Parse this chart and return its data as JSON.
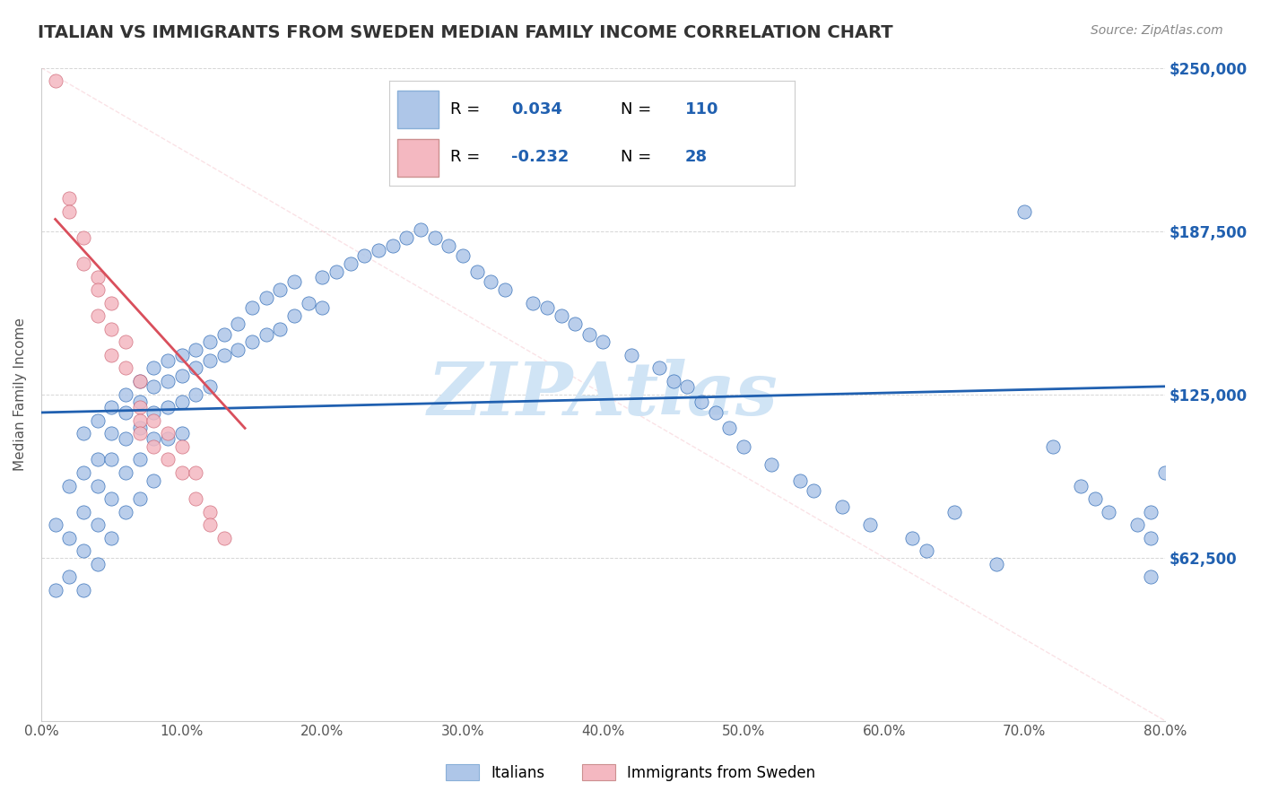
{
  "title": "ITALIAN VS IMMIGRANTS FROM SWEDEN MEDIAN FAMILY INCOME CORRELATION CHART",
  "source": "Source: ZipAtlas.com",
  "ylabel": "Median Family Income",
  "xlim": [
    0.0,
    0.8
  ],
  "ylim": [
    0,
    250000
  ],
  "ytick_labels": [
    "",
    "$62,500",
    "$125,000",
    "$187,500",
    "$250,000"
  ],
  "ytick_values": [
    0,
    62500,
    125000,
    187500,
    250000
  ],
  "xtick_labels": [
    "0.0%",
    "10.0%",
    "20.0%",
    "30.0%",
    "40.0%",
    "50.0%",
    "60.0%",
    "70.0%",
    "80.0%"
  ],
  "xtick_values": [
    0.0,
    0.1,
    0.2,
    0.3,
    0.4,
    0.5,
    0.6,
    0.7,
    0.8
  ],
  "r_blue": 0.034,
  "r_pink": -0.232,
  "n_blue": 110,
  "n_pink": 28,
  "blue_color": "#aec6e8",
  "pink_color": "#f4b8c1",
  "blue_line_color": "#2060b0",
  "pink_line_color": "#d94f5c",
  "title_color": "#333333",
  "source_color": "#888888",
  "watermark_color": "#d0e4f5",
  "background_color": "#ffffff",
  "grid_color": "#cccccc",
  "blue_scatter_x": [
    0.01,
    0.01,
    0.02,
    0.02,
    0.02,
    0.03,
    0.03,
    0.03,
    0.03,
    0.03,
    0.04,
    0.04,
    0.04,
    0.04,
    0.04,
    0.05,
    0.05,
    0.05,
    0.05,
    0.05,
    0.06,
    0.06,
    0.06,
    0.06,
    0.06,
    0.07,
    0.07,
    0.07,
    0.07,
    0.07,
    0.08,
    0.08,
    0.08,
    0.08,
    0.08,
    0.09,
    0.09,
    0.09,
    0.09,
    0.1,
    0.1,
    0.1,
    0.1,
    0.11,
    0.11,
    0.11,
    0.12,
    0.12,
    0.12,
    0.13,
    0.13,
    0.14,
    0.14,
    0.15,
    0.15,
    0.16,
    0.16,
    0.17,
    0.17,
    0.18,
    0.18,
    0.19,
    0.2,
    0.2,
    0.21,
    0.22,
    0.23,
    0.24,
    0.25,
    0.26,
    0.27,
    0.28,
    0.29,
    0.3,
    0.31,
    0.32,
    0.33,
    0.35,
    0.36,
    0.37,
    0.38,
    0.39,
    0.4,
    0.42,
    0.44,
    0.45,
    0.46,
    0.47,
    0.48,
    0.49,
    0.5,
    0.52,
    0.54,
    0.55,
    0.57,
    0.59,
    0.62,
    0.63,
    0.65,
    0.68,
    0.7,
    0.72,
    0.74,
    0.75,
    0.76,
    0.78,
    0.79,
    0.79,
    0.79,
    0.8
  ],
  "blue_scatter_y": [
    75000,
    50000,
    90000,
    70000,
    55000,
    110000,
    95000,
    80000,
    65000,
    50000,
    115000,
    100000,
    90000,
    75000,
    60000,
    120000,
    110000,
    100000,
    85000,
    70000,
    125000,
    118000,
    108000,
    95000,
    80000,
    130000,
    122000,
    112000,
    100000,
    85000,
    135000,
    128000,
    118000,
    108000,
    92000,
    138000,
    130000,
    120000,
    108000,
    140000,
    132000,
    122000,
    110000,
    142000,
    135000,
    125000,
    145000,
    138000,
    128000,
    148000,
    140000,
    152000,
    142000,
    158000,
    145000,
    162000,
    148000,
    165000,
    150000,
    168000,
    155000,
    160000,
    170000,
    158000,
    172000,
    175000,
    178000,
    180000,
    182000,
    185000,
    188000,
    185000,
    182000,
    178000,
    172000,
    168000,
    165000,
    160000,
    158000,
    155000,
    152000,
    148000,
    145000,
    140000,
    135000,
    130000,
    128000,
    122000,
    118000,
    112000,
    105000,
    98000,
    92000,
    88000,
    82000,
    75000,
    70000,
    65000,
    80000,
    60000,
    195000,
    105000,
    90000,
    85000,
    80000,
    75000,
    70000,
    80000,
    55000,
    95000
  ],
  "pink_scatter_x": [
    0.01,
    0.02,
    0.02,
    0.03,
    0.03,
    0.04,
    0.04,
    0.04,
    0.05,
    0.05,
    0.05,
    0.06,
    0.06,
    0.07,
    0.07,
    0.07,
    0.07,
    0.08,
    0.08,
    0.09,
    0.09,
    0.1,
    0.1,
    0.11,
    0.11,
    0.12,
    0.12,
    0.13
  ],
  "pink_scatter_y": [
    245000,
    200000,
    195000,
    185000,
    175000,
    170000,
    165000,
    155000,
    160000,
    150000,
    140000,
    145000,
    135000,
    130000,
    120000,
    115000,
    110000,
    115000,
    105000,
    110000,
    100000,
    105000,
    95000,
    95000,
    85000,
    80000,
    75000,
    70000
  ],
  "blue_trend_x": [
    0.0,
    0.8
  ],
  "blue_trend_y": [
    118000,
    128000
  ],
  "pink_trend_x": [
    0.01,
    0.145
  ],
  "pink_trend_y": [
    192000,
    112000
  ],
  "diag_line_color": "#f4b8c1",
  "legend_entries": [
    {
      "label": "Italians",
      "color": "#aec6e8",
      "r": "0.034",
      "n": "110"
    },
    {
      "label": "Immigrants from Sweden",
      "color": "#f4b8c1",
      "r": "-0.232",
      "n": "28"
    }
  ]
}
